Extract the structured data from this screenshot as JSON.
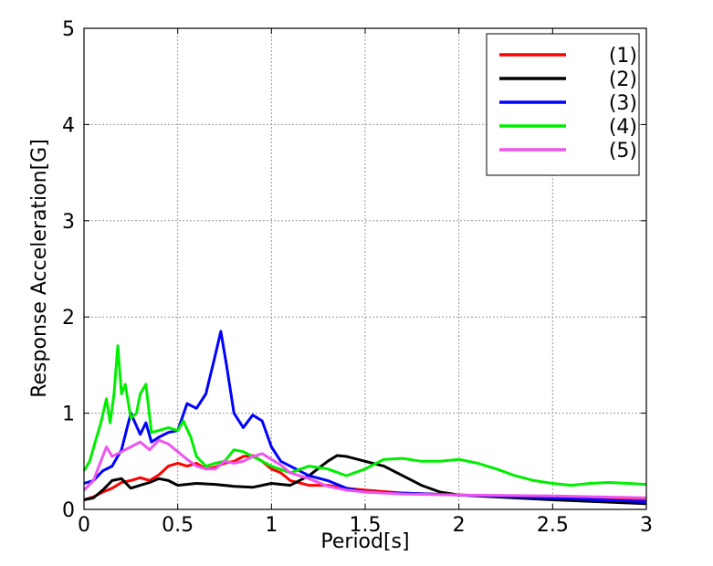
{
  "chart_data": {
    "type": "line",
    "xlabel": "Period[s]",
    "ylabel": "Response Acceleration[G]",
    "xlim": [
      0,
      3
    ],
    "ylim": [
      0,
      5
    ],
    "x_ticks": [
      "0",
      "0.5",
      "1",
      "1.5",
      "2",
      "2.5",
      "3"
    ],
    "y_ticks": [
      "0",
      "1",
      "2",
      "3",
      "4",
      "5"
    ],
    "grid": true,
    "legend_position": "top-right",
    "series": [
      {
        "name": "(1)",
        "color": "#ff0000",
        "x": [
          0,
          0.05,
          0.1,
          0.15,
          0.2,
          0.25,
          0.3,
          0.35,
          0.4,
          0.45,
          0.5,
          0.55,
          0.6,
          0.65,
          0.7,
          0.75,
          0.8,
          0.85,
          0.9,
          0.95,
          1.0,
          1.05,
          1.1,
          1.2,
          1.3,
          1.4,
          1.5,
          1.7,
          2.0,
          2.5,
          3.0
        ],
        "values": [
          0.1,
          0.13,
          0.18,
          0.22,
          0.28,
          0.3,
          0.33,
          0.3,
          0.36,
          0.45,
          0.48,
          0.45,
          0.48,
          0.42,
          0.44,
          0.48,
          0.5,
          0.55,
          0.56,
          0.5,
          0.42,
          0.38,
          0.3,
          0.25,
          0.25,
          0.22,
          0.2,
          0.17,
          0.15,
          0.12,
          0.1
        ]
      },
      {
        "name": "(2)",
        "color": "#000000",
        "x": [
          0,
          0.05,
          0.1,
          0.15,
          0.2,
          0.25,
          0.3,
          0.35,
          0.4,
          0.45,
          0.5,
          0.6,
          0.7,
          0.8,
          0.9,
          1.0,
          1.1,
          1.2,
          1.3,
          1.35,
          1.4,
          1.5,
          1.6,
          1.7,
          1.8,
          1.9,
          2.0,
          2.5,
          3.0
        ],
        "values": [
          0.1,
          0.12,
          0.2,
          0.3,
          0.32,
          0.22,
          0.25,
          0.28,
          0.32,
          0.3,
          0.25,
          0.27,
          0.26,
          0.24,
          0.23,
          0.27,
          0.25,
          0.35,
          0.5,
          0.56,
          0.55,
          0.5,
          0.45,
          0.35,
          0.25,
          0.18,
          0.15,
          0.1,
          0.06
        ]
      },
      {
        "name": "(3)",
        "color": "#0000ff",
        "x": [
          0,
          0.05,
          0.1,
          0.15,
          0.2,
          0.25,
          0.3,
          0.33,
          0.36,
          0.4,
          0.45,
          0.5,
          0.55,
          0.6,
          0.65,
          0.7,
          0.73,
          0.76,
          0.8,
          0.85,
          0.9,
          0.95,
          1.0,
          1.05,
          1.1,
          1.2,
          1.3,
          1.4,
          1.5,
          1.7,
          2.0,
          2.5,
          3.0
        ],
        "values": [
          0.27,
          0.3,
          0.4,
          0.45,
          0.62,
          1.0,
          0.78,
          0.9,
          0.7,
          0.75,
          0.8,
          0.82,
          1.1,
          1.05,
          1.2,
          1.6,
          1.85,
          1.5,
          1.0,
          0.85,
          0.98,
          0.92,
          0.65,
          0.5,
          0.45,
          0.35,
          0.3,
          0.22,
          0.18,
          0.17,
          0.15,
          0.12,
          0.08
        ]
      },
      {
        "name": "(4)",
        "color": "#00ee00",
        "x": [
          0,
          0.03,
          0.06,
          0.09,
          0.12,
          0.14,
          0.16,
          0.18,
          0.2,
          0.22,
          0.25,
          0.28,
          0.3,
          0.33,
          0.36,
          0.4,
          0.45,
          0.5,
          0.53,
          0.57,
          0.6,
          0.65,
          0.7,
          0.75,
          0.8,
          0.85,
          0.9,
          0.95,
          1.0,
          1.1,
          1.2,
          1.3,
          1.4,
          1.5,
          1.6,
          1.7,
          1.8,
          1.9,
          2.0,
          2.1,
          2.2,
          2.3,
          2.4,
          2.5,
          2.6,
          2.7,
          2.8,
          2.9,
          3.0
        ],
        "values": [
          0.4,
          0.5,
          0.7,
          0.9,
          1.15,
          0.9,
          1.2,
          1.7,
          1.2,
          1.3,
          0.95,
          1.0,
          1.2,
          1.3,
          0.8,
          0.82,
          0.85,
          0.82,
          0.92,
          0.75,
          0.55,
          0.45,
          0.48,
          0.5,
          0.62,
          0.6,
          0.55,
          0.5,
          0.45,
          0.38,
          0.45,
          0.42,
          0.35,
          0.42,
          0.52,
          0.53,
          0.5,
          0.5,
          0.52,
          0.48,
          0.42,
          0.35,
          0.3,
          0.27,
          0.25,
          0.27,
          0.28,
          0.27,
          0.26
        ]
      },
      {
        "name": "(5)",
        "color": "#ee55ee",
        "x": [
          0,
          0.05,
          0.1,
          0.12,
          0.15,
          0.2,
          0.25,
          0.3,
          0.35,
          0.4,
          0.45,
          0.5,
          0.55,
          0.6,
          0.65,
          0.7,
          0.75,
          0.8,
          0.85,
          0.9,
          0.95,
          1.0,
          1.05,
          1.1,
          1.2,
          1.3,
          1.4,
          1.5,
          1.7,
          2.0,
          2.5,
          3.0
        ],
        "values": [
          0.2,
          0.3,
          0.55,
          0.65,
          0.55,
          0.6,
          0.65,
          0.7,
          0.62,
          0.72,
          0.68,
          0.6,
          0.52,
          0.45,
          0.42,
          0.42,
          0.5,
          0.48,
          0.5,
          0.55,
          0.58,
          0.52,
          0.46,
          0.38,
          0.32,
          0.24,
          0.2,
          0.18,
          0.16,
          0.15,
          0.14,
          0.12
        ]
      }
    ]
  }
}
